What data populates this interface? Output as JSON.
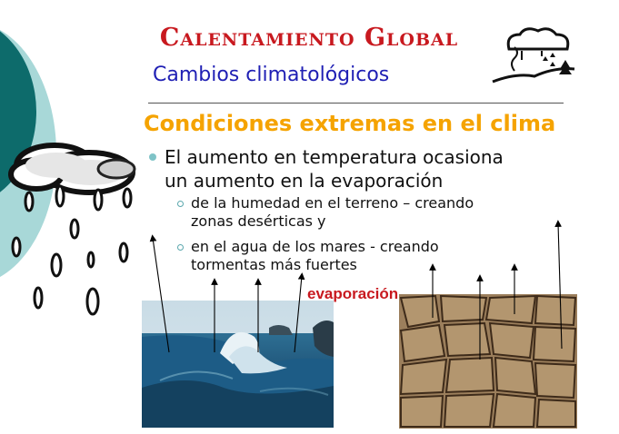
{
  "slide": {
    "title": "Calentamiento Global",
    "subtitle": "Cambios climatológicos",
    "heading": "Condiciones extremas en el clima",
    "bullet": {
      "line1": "El aumento en temperatura ocasiona",
      "line2": "un aumento en la evaporación"
    },
    "subbullets": [
      {
        "line1": "de la humedad en el terreno – creando",
        "line2": "zonas desérticas y"
      },
      {
        "line1": "en el agua de los mares - creando",
        "line2": "tormentas más fuertes"
      }
    ],
    "evaporation_label": "evaporación"
  },
  "colors": {
    "title": "#c8191f",
    "subtitle": "#1f1fb4",
    "heading": "#f5a300",
    "accent_teal": "#0d6b6b",
    "accent_light": "#a8d8d8"
  },
  "icons": {
    "weather": "cloud-rain-wind-icon",
    "rain": "raincloud-drops-icon"
  },
  "images": {
    "ocean": "ocean-wave-photo",
    "desert": "cracked-dry-earth-photo"
  }
}
